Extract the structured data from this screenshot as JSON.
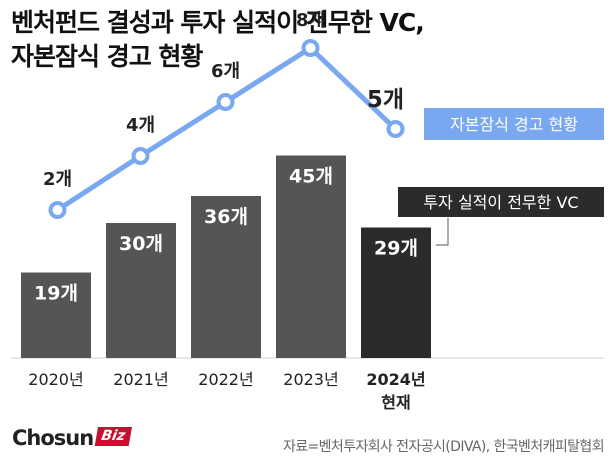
{
  "title": {
    "line1": "벤처펀드 결성과 투자 실적이 전무한 VC,",
    "line2": "자본잠식 경고 현황"
  },
  "chart_data": {
    "type": "bar+line",
    "categories": [
      {
        "line1": "2020년",
        "line2": ""
      },
      {
        "line1": "2021년",
        "line2": ""
      },
      {
        "line1": "2022년",
        "line2": ""
      },
      {
        "line1": "2023년",
        "line2": ""
      },
      {
        "line1": "2024년",
        "line2": "현재"
      }
    ],
    "bar_series": {
      "name": "투자 실적이 전무한 VC",
      "values": [
        19,
        30,
        36,
        45,
        29
      ],
      "labels": [
        "19개",
        "30개",
        "36개",
        "45개",
        "29개"
      ],
      "color": "#555555",
      "highlight_color": "#2b2b2b"
    },
    "line_series": {
      "name": "자본잠식 경고 현황",
      "values": [
        2,
        4,
        6,
        8,
        5
      ],
      "labels": [
        "2개",
        "4개",
        "6개",
        "8개",
        "5개"
      ],
      "color": "#7aa8f0"
    },
    "legend": {
      "line_label": "자본잠식 경고 현황",
      "bar_label": "투자 실적이 전무한 VC"
    }
  },
  "footer": {
    "brand_main": "Chosun",
    "brand_accent": "Biz",
    "source": "자료=벤처투자회사 전자공시(DIVA), 한국벤처캐피탈협회"
  },
  "colors": {
    "line": "#7aa8f0",
    "bar": "#555555",
    "bar_last": "#2b2b2b",
    "brand_red": "#c8102e"
  }
}
